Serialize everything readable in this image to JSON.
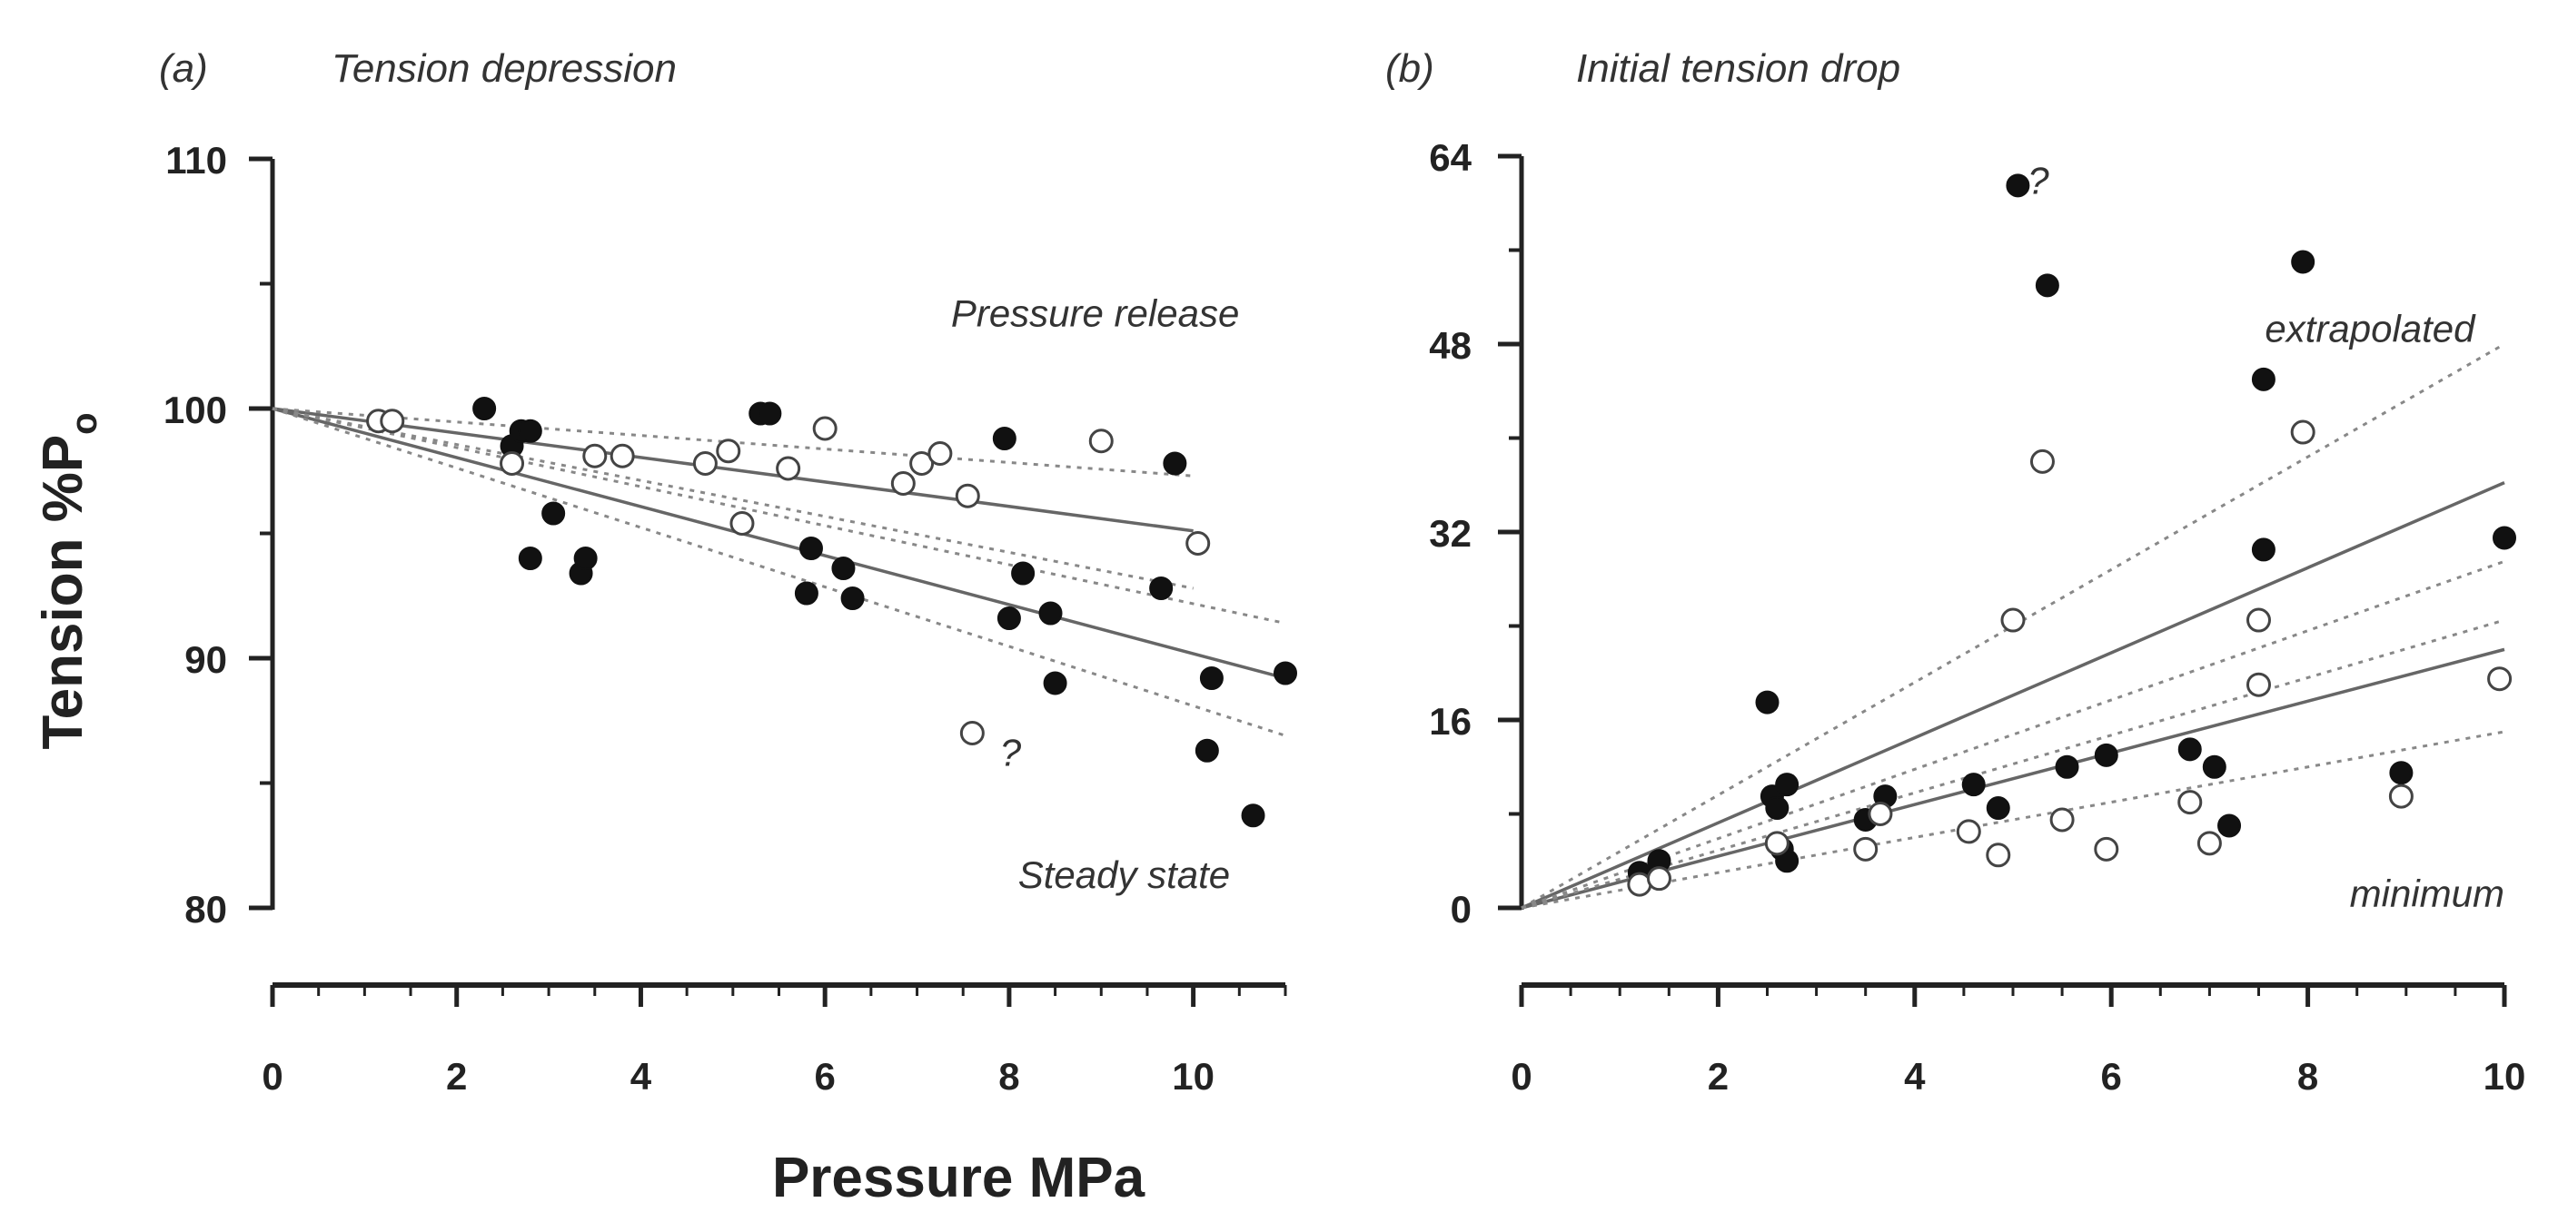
{
  "xlabel": "Pressure MPa",
  "ylabel": "Tension %P",
  "ylabel_sub": "o",
  "chart_data": [
    {
      "type": "scatter",
      "panel_label": "(a)",
      "title": "Tension depression",
      "xlim": [
        0,
        11
      ],
      "ylim": [
        80,
        110
      ],
      "xticks": [
        "0",
        "2",
        "4",
        "6",
        "8",
        "10"
      ],
      "yticks": [
        "80",
        "90",
        "100",
        "110"
      ],
      "annotations": [
        {
          "text": "Pressure release",
          "x": 10.5,
          "y": 103.3,
          "anchor": "end"
        },
        {
          "text": "Steady state",
          "x": 10.4,
          "y": 80.8,
          "anchor": "end"
        },
        {
          "text": "?",
          "x": 7.9,
          "y": 85.7,
          "anchor": "start"
        }
      ],
      "series": [
        {
          "name": "Steady state",
          "marker": "filled",
          "points": [
            [
              2.3,
              100
            ],
            [
              2.6,
              98.5
            ],
            [
              2.7,
              99.1
            ],
            [
              2.8,
              99.1
            ],
            [
              2.8,
              94
            ],
            [
              3.05,
              95.8
            ],
            [
              3.35,
              93.4
            ],
            [
              3.4,
              94
            ],
            [
              5.3,
              99.8
            ],
            [
              5.4,
              99.8
            ],
            [
              5.8,
              92.6
            ],
            [
              5.85,
              94.4
            ],
            [
              6.2,
              93.6
            ],
            [
              6.3,
              92.4
            ],
            [
              7.95,
              98.8
            ],
            [
              8.0,
              91.6
            ],
            [
              8.15,
              93.4
            ],
            [
              8.45,
              91.8
            ],
            [
              8.5,
              89
            ],
            [
              9.65,
              92.8
            ],
            [
              9.8,
              97.8
            ],
            [
              10.15,
              86.3
            ],
            [
              10.2,
              89.2
            ],
            [
              10.65,
              83.7
            ],
            [
              11.0,
              89.4
            ]
          ]
        },
        {
          "name": "Pressure release",
          "marker": "open",
          "points": [
            [
              1.15,
              99.5
            ],
            [
              1.3,
              99.5
            ],
            [
              2.6,
              97.8
            ],
            [
              3.5,
              98.1
            ],
            [
              3.8,
              98.1
            ],
            [
              4.7,
              97.8
            ],
            [
              4.95,
              98.3
            ],
            [
              5.1,
              95.4
            ],
            [
              5.6,
              97.6
            ],
            [
              6.0,
              99.2
            ],
            [
              6.85,
              97
            ],
            [
              7.05,
              97.8
            ],
            [
              7.25,
              98.2
            ],
            [
              7.55,
              96.5
            ],
            [
              7.6,
              87
            ],
            [
              9.0,
              98.7
            ],
            [
              10.05,
              94.6
            ]
          ]
        }
      ],
      "fit_lines": [
        {
          "name": "Pressure release fit",
          "style": "solid",
          "from": [
            0,
            100
          ],
          "to": [
            10,
            95.1
          ]
        },
        {
          "name": "Pressure release CI upper",
          "style": "dotted",
          "from": [
            0,
            100
          ],
          "to": [
            10,
            97.3
          ]
        },
        {
          "name": "Pressure release CI lower",
          "style": "dotted",
          "from": [
            0,
            100
          ],
          "to": [
            10,
            92.8
          ]
        },
        {
          "name": "Steady state fit",
          "style": "solid",
          "from": [
            0,
            100
          ],
          "to": [
            11,
            89.2
          ]
        },
        {
          "name": "Steady state CI upper",
          "style": "dotted",
          "from": [
            0,
            100
          ],
          "to": [
            11,
            91.4
          ]
        },
        {
          "name": "Steady state CI lower",
          "style": "dotted",
          "from": [
            0,
            100
          ],
          "to": [
            11,
            86.9
          ]
        }
      ]
    },
    {
      "type": "scatter",
      "panel_label": "(b)",
      "title": "Initial tension drop",
      "xlim": [
        0,
        10
      ],
      "ylim": [
        0,
        64
      ],
      "xticks": [
        "0",
        "2",
        "4",
        "6",
        "8",
        "10"
      ],
      "yticks": [
        "0",
        "16",
        "32",
        "48",
        "64"
      ],
      "annotations": [
        {
          "text": "extrapolated",
          "x": 9.7,
          "y": 48.2,
          "anchor": "end"
        },
        {
          "text": "minimum",
          "x": 10.0,
          "y": 0.1,
          "anchor": "end"
        },
        {
          "text": "?",
          "x": 5.15,
          "y": 60.8,
          "anchor": "start"
        }
      ],
      "series": [
        {
          "name": "extrapolated",
          "marker": "filled",
          "points": [
            [
              1.2,
              3
            ],
            [
              1.4,
              4
            ],
            [
              2.5,
              17.5
            ],
            [
              2.55,
              9.5
            ],
            [
              2.6,
              8.5
            ],
            [
              2.65,
              5
            ],
            [
              2.7,
              4
            ],
            [
              2.7,
              10.5
            ],
            [
              3.5,
              7.5
            ],
            [
              3.7,
              9.5
            ],
            [
              4.6,
              10.5
            ],
            [
              4.85,
              8.5
            ],
            [
              5.05,
              61.5
            ],
            [
              5.35,
              53
            ],
            [
              5.55,
              12
            ],
            [
              5.95,
              13
            ],
            [
              6.8,
              13.5
            ],
            [
              7.05,
              12
            ],
            [
              7.2,
              7
            ],
            [
              7.55,
              45
            ],
            [
              7.55,
              30.5
            ],
            [
              7.95,
              55
            ],
            [
              8.95,
              11.5
            ],
            [
              10.0,
              31.5
            ]
          ]
        },
        {
          "name": "minimum",
          "marker": "open",
          "points": [
            [
              1.2,
              2
            ],
            [
              1.4,
              2.5
            ],
            [
              2.6,
              5.5
            ],
            [
              3.5,
              5
            ],
            [
              3.65,
              8
            ],
            [
              4.55,
              6.5
            ],
            [
              4.85,
              4.5
            ],
            [
              5.0,
              24.5
            ],
            [
              5.3,
              38
            ],
            [
              5.5,
              7.5
            ],
            [
              5.95,
              5
            ],
            [
              6.8,
              9
            ],
            [
              7.0,
              5.5
            ],
            [
              7.5,
              24.5
            ],
            [
              7.5,
              19
            ],
            [
              7.95,
              40.5
            ],
            [
              8.95,
              9.5
            ],
            [
              9.95,
              19.5
            ]
          ]
        }
      ],
      "fit_lines": [
        {
          "name": "extrapolated fit",
          "style": "solid",
          "from": [
            0,
            0
          ],
          "to": [
            10,
            36.2
          ]
        },
        {
          "name": "extrapolated CI upper",
          "style": "dotted",
          "from": [
            0,
            0
          ],
          "to": [
            10,
            48
          ]
        },
        {
          "name": "extrapolated CI lower",
          "style": "dotted",
          "from": [
            0,
            0
          ],
          "to": [
            10,
            29.5
          ]
        },
        {
          "name": "minimum fit",
          "style": "solid",
          "from": [
            0,
            0
          ],
          "to": [
            10,
            22
          ]
        },
        {
          "name": "minimum CI upper",
          "style": "dotted",
          "from": [
            0,
            0
          ],
          "to": [
            10,
            24.5
          ]
        },
        {
          "name": "minimum CI lower",
          "style": "dotted",
          "from": [
            0,
            0
          ],
          "to": [
            10,
            15
          ]
        }
      ]
    }
  ]
}
